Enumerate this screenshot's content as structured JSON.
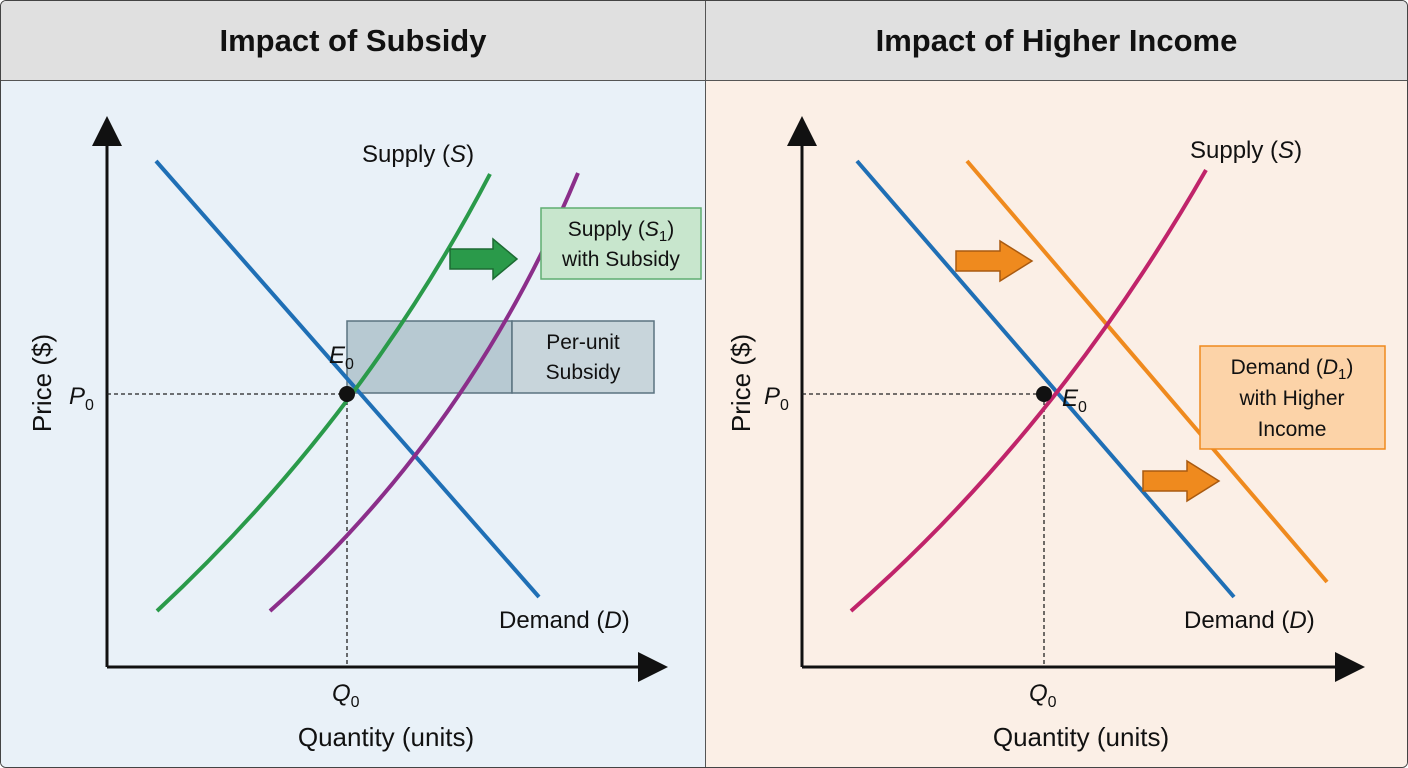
{
  "left_panel": {
    "title": "Impact of Subsidy",
    "y_label": "Price ($)",
    "x_label": "Quantity (units)",
    "p0_main": "P",
    "p0_sub": "0",
    "q0_main": "Q",
    "q0_sub": "0",
    "e0_main": "E",
    "e0_sub": "0",
    "supply_label": {
      "prefix": "Supply (",
      "sym": "S",
      "suffix": ")"
    },
    "demand_label": {
      "prefix": "Demand (",
      "sym": "D",
      "suffix": ")"
    },
    "supply_shift_box": {
      "line1_prefix": "Supply (",
      "line1_sym": "S",
      "line1_sub": "1",
      "line1_suffix": ")",
      "line2": "with Subsidy"
    },
    "subsidy_box": {
      "line1": "Per-unit",
      "line2": "Subsidy"
    },
    "colors": {
      "demand": "#1f6fb5",
      "supply": "#2a9a4a",
      "supply_shifted": "#8b2e8a",
      "arrow": "#2a9a4a",
      "background": "#e9f1f8"
    }
  },
  "right_panel": {
    "title": "Impact of Higher Income",
    "y_label": "Price ($)",
    "x_label": "Quantity (units)",
    "p0_main": "P",
    "p0_sub": "0",
    "q0_main": "Q",
    "q0_sub": "0",
    "e0_main": "E",
    "e0_sub": "0",
    "supply_label": {
      "prefix": "Supply (",
      "sym": "S",
      "suffix": ")"
    },
    "demand_label": {
      "prefix": "Demand (",
      "sym": "D",
      "suffix": ")"
    },
    "demand_shift_box": {
      "line1_prefix": "Demand (",
      "line1_sym": "D",
      "line1_sub": "1",
      "line1_suffix": ")",
      "line2": "with Higher",
      "line3": "Income"
    },
    "colors": {
      "demand": "#1f6fb5",
      "supply": "#c0246a",
      "demand_shifted": "#ef8a1e",
      "arrow": "#ef8a1e",
      "background": "#fbefe6"
    }
  }
}
